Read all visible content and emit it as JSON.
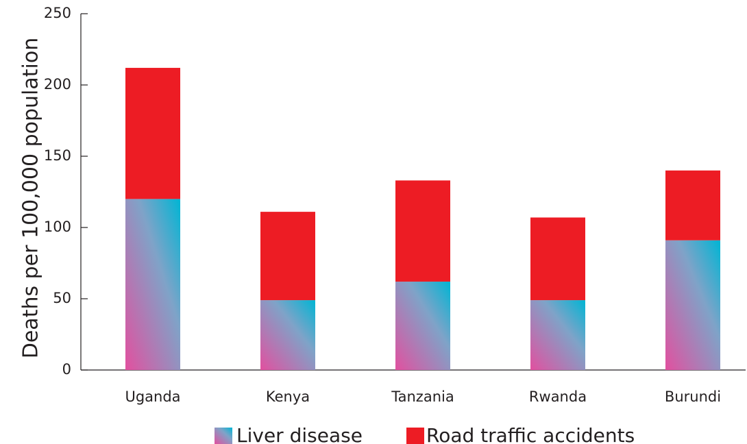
{
  "chart_data": {
    "type": "bar",
    "stacked": true,
    "title": "",
    "xlabel": "",
    "ylabel": "Deaths per 100,000 population",
    "ylim": [
      0,
      250
    ],
    "yticks": [
      0,
      50,
      100,
      150,
      200,
      250
    ],
    "grid": false,
    "legend_position": "bottom",
    "categories": [
      "Uganda",
      "Kenya",
      "Tanzania",
      "Rwanda",
      "Burundi"
    ],
    "series": [
      {
        "name": "Liver disease",
        "values": [
          120,
          49,
          62,
          49,
          91
        ],
        "color_gradient": [
          "#e2509f",
          "#00b5d4"
        ]
      },
      {
        "name": "Road traffic accidents",
        "values": [
          92,
          62,
          71,
          58,
          49
        ],
        "color": "#ed1c24"
      }
    ]
  }
}
